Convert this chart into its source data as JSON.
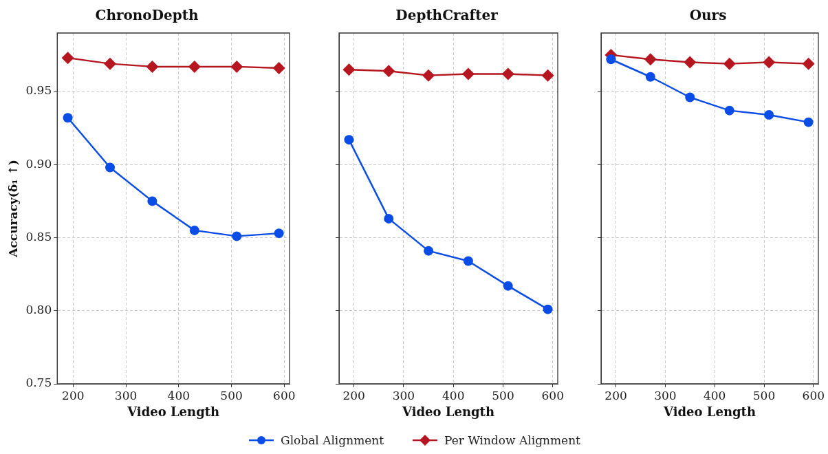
{
  "chart_data": [
    {
      "type": "line",
      "title": "ChronoDepth",
      "xlabel": "Video Length",
      "ylabel": "Accuracy(δ₁ ↑)",
      "x": [
        190,
        270,
        350,
        430,
        510,
        590
      ],
      "xlim": [
        170,
        610
      ],
      "xticks": [
        200,
        300,
        400,
        500,
        600
      ],
      "ylim": [
        0.75,
        0.99
      ],
      "yticks": [
        0.75,
        {
          "value": 0.8,
          "label": "0.80"
        },
        0.85,
        {
          "value": 0.9,
          "label": "0.90"
        },
        0.95
      ],
      "grid": true,
      "legend": "bottom",
      "series": [
        {
          "name": "Global Alignment",
          "color": "#0a4de6",
          "marker": "circle",
          "values": [
            0.932,
            0.898,
            0.875,
            0.855,
            0.851,
            0.853
          ]
        },
        {
          "name": "Per Window Alignment",
          "color": "#b5161f",
          "marker": "diamond",
          "values": [
            0.973,
            0.969,
            0.967,
            0.967,
            0.967,
            0.966
          ]
        }
      ]
    },
    {
      "type": "line",
      "title": "DepthCrafter",
      "xlabel": "Video Length",
      "x": [
        190,
        270,
        350,
        430,
        510,
        590
      ],
      "xlim": [
        170,
        610
      ],
      "xticks": [
        200,
        300,
        400,
        500,
        600
      ],
      "ylim": [
        0.75,
        0.99
      ],
      "yticks": [
        {
          "value": 0.75,
          "label": null
        },
        {
          "value": 0.8,
          "label": null
        },
        {
          "value": 0.85,
          "label": null
        },
        {
          "value": 0.9,
          "label": null
        },
        {
          "value": 0.95,
          "label": null
        }
      ],
      "grid": true,
      "tick_labels": "x",
      "series": [
        {
          "color": "#0a4de6",
          "marker": "circle",
          "values": [
            0.917,
            0.863,
            0.841,
            0.834,
            0.817,
            0.801
          ]
        },
        {
          "color": "#b5161f",
          "marker": "diamond",
          "values": [
            0.965,
            0.964,
            0.961,
            0.962,
            0.962,
            0.961
          ]
        }
      ]
    },
    {
      "type": "line",
      "title": "Ours",
      "xlabel": "Video Length",
      "x": [
        190,
        270,
        350,
        430,
        510,
        590
      ],
      "xlim": [
        170,
        610
      ],
      "xticks": [
        200,
        300,
        400,
        500,
        600
      ],
      "ylim": [
        0.75,
        0.99
      ],
      "yticks": [
        {
          "value": 0.75,
          "label": null
        },
        {
          "value": 0.8,
          "label": null
        },
        {
          "value": 0.85,
          "label": null
        },
        {
          "value": 0.9,
          "label": null
        },
        {
          "value": 0.95,
          "label": null
        }
      ],
      "grid": true,
      "tick_labels": "x",
      "series": [
        {
          "color": "#0a4de6",
          "marker": "circle",
          "values": [
            0.972,
            0.96,
            0.946,
            0.937,
            0.934,
            0.929
          ]
        },
        {
          "color": "#b5161f",
          "marker": "diamond",
          "values": [
            0.975,
            0.972,
            0.97,
            0.969,
            0.97,
            0.969
          ]
        }
      ]
    }
  ]
}
